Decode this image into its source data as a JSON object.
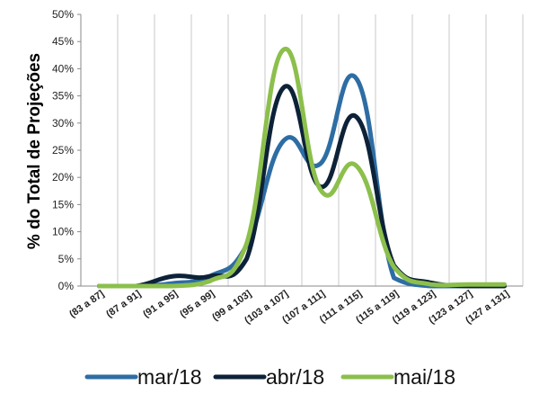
{
  "chart_data": {
    "type": "line",
    "title": "",
    "xlabel": "",
    "ylabel": "% do Total de Projeções",
    "categories": [
      "(83 a 87]",
      "(87 a 91]",
      "(91 a 95]",
      "(95 a 99]",
      "(99 a 103]",
      "(103 a 107]",
      "(107 a 111]",
      "(111 a 115]",
      "(115 a 119]",
      "(119 a 123]",
      "(123 a 127]",
      "(127 a 131]"
    ],
    "y_ticks": [
      "0%",
      "5%",
      "10%",
      "15%",
      "20%",
      "25%",
      "30%",
      "35%",
      "40%",
      "45%",
      "50%"
    ],
    "ylim": [
      0,
      50
    ],
    "grid": "vertical",
    "legend_position": "bottom",
    "series": [
      {
        "name": "mar/18",
        "color": "#2e6da4",
        "values": [
          0,
          0,
          0.5,
          1.8,
          7.5,
          26.7,
          22.5,
          38.0,
          1.5,
          0,
          0,
          0
        ]
      },
      {
        "name": "abr/18",
        "color": "#0d2238",
        "values": [
          0,
          0,
          1.8,
          1.8,
          5.0,
          36.5,
          18.3,
          31.0,
          3.8,
          0.6,
          0,
          0
        ]
      },
      {
        "name": "mai/18",
        "color": "#8cbf4c",
        "values": [
          0,
          0,
          0,
          0.9,
          7.8,
          43.5,
          17.8,
          22.0,
          3.5,
          0.3,
          0.3,
          0.3
        ]
      }
    ]
  }
}
